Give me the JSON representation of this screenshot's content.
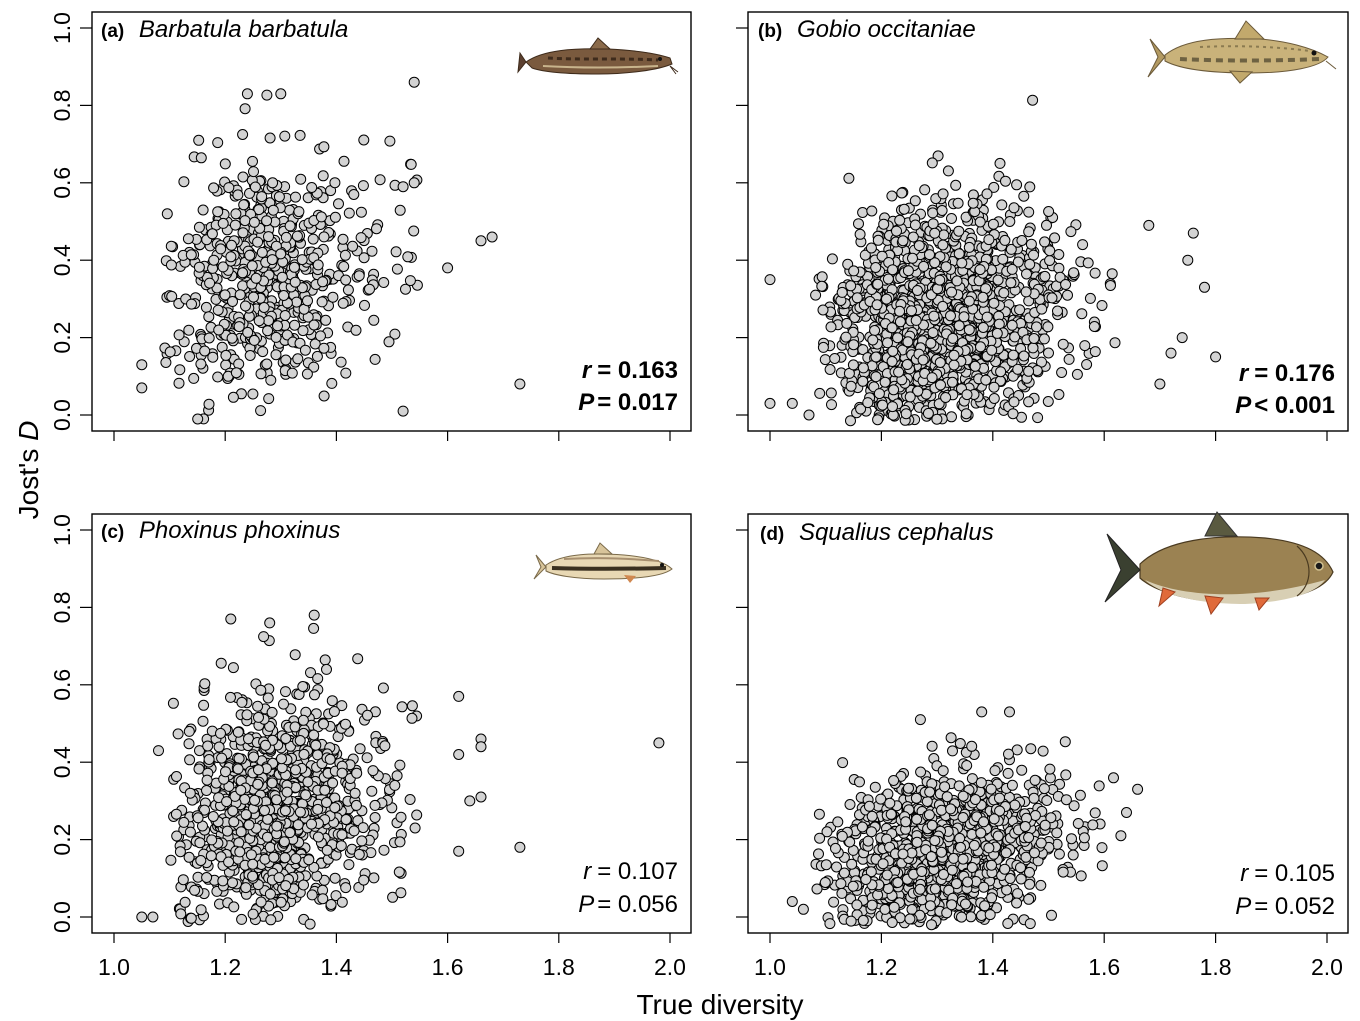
{
  "figure": {
    "xlabel": "True diversity",
    "ylabel": "Jost's D",
    "ylabel_plain": "Jost's ",
    "ylabel_italic": "D",
    "x_ticks": [
      "1.0",
      "1.2",
      "1.4",
      "1.6",
      "1.8",
      "2.0"
    ],
    "y_ticks": [
      "0.0",
      "0.2",
      "0.4",
      "0.6",
      "0.8",
      "1.0"
    ]
  },
  "colors": {
    "point_fill": "#d3d3d3",
    "point_stroke": "#000000",
    "frame": "#000000"
  },
  "chart_data": [
    {
      "type": "scatter",
      "panel_letter": "(a)",
      "species": "Barbatula barbatula",
      "fish_icon": "stone-loach-fish-illustration",
      "r_label": "r",
      "r_value": "= 0.163",
      "p_label": "P",
      "p_value": "= 0.017",
      "stats_bold": true,
      "xlim": [
        1.0,
        2.0
      ],
      "ylim": [
        0.0,
        1.0
      ],
      "n_points": 620,
      "cloud": {
        "x_mean": 1.27,
        "x_sd": 0.085,
        "y_mean": 0.35,
        "y_sd": 0.15,
        "x_min": 1.09,
        "x_max": 1.55
      },
      "extra_points": [
        {
          "x": 1.05,
          "y": 0.13
        },
        {
          "x": 1.05,
          "y": 0.07
        },
        {
          "x": 1.54,
          "y": 0.86
        },
        {
          "x": 1.66,
          "y": 0.45
        },
        {
          "x": 1.68,
          "y": 0.46
        },
        {
          "x": 1.6,
          "y": 0.38
        },
        {
          "x": 1.73,
          "y": 0.08
        },
        {
          "x": 1.52,
          "y": 0.01
        },
        {
          "x": 1.54,
          "y": 0.6
        },
        {
          "x": 1.52,
          "y": 0.59
        },
        {
          "x": 1.24,
          "y": 0.83
        },
        {
          "x": 1.3,
          "y": 0.83
        }
      ]
    },
    {
      "type": "scatter",
      "panel_letter": "(b)",
      "species": "Gobio occitaniae",
      "fish_icon": "gudgeon-fish-illustration",
      "r_label": "r",
      "r_value": "= 0.176",
      "p_label": "P",
      "p_value": "< 0.001",
      "stats_bold": true,
      "xlim": [
        1.0,
        2.0
      ],
      "ylim": [
        0.0,
        1.0
      ],
      "n_points": 1500,
      "cloud": {
        "x_mean": 1.3,
        "x_sd": 0.095,
        "y_mean": 0.24,
        "y_sd": 0.14,
        "x_min": 1.08,
        "x_max": 1.62
      },
      "extra_points": [
        {
          "x": 1.0,
          "y": 0.35
        },
        {
          "x": 1.0,
          "y": 0.03
        },
        {
          "x": 1.04,
          "y": 0.03
        },
        {
          "x": 1.07,
          "y": 0.0
        },
        {
          "x": 1.8,
          "y": 0.15
        },
        {
          "x": 1.76,
          "y": 0.47
        },
        {
          "x": 1.78,
          "y": 0.33
        },
        {
          "x": 1.75,
          "y": 0.4
        },
        {
          "x": 1.7,
          "y": 0.08
        },
        {
          "x": 1.68,
          "y": 0.49
        },
        {
          "x": 1.72,
          "y": 0.16
        },
        {
          "x": 1.74,
          "y": 0.2
        }
      ]
    },
    {
      "type": "scatter",
      "panel_letter": "(c)",
      "species": "Phoxinus phoxinus",
      "fish_icon": "minnow-fish-illustration",
      "r_label": "r",
      "r_value": "= 0.107",
      "p_label": "P",
      "p_value": "= 0.056",
      "stats_bold": false,
      "xlim": [
        1.0,
        2.0
      ],
      "ylim": [
        0.0,
        1.0
      ],
      "n_points": 1050,
      "cloud": {
        "x_mean": 1.28,
        "x_sd": 0.085,
        "y_mean": 0.27,
        "y_sd": 0.14,
        "x_min": 1.1,
        "x_max": 1.55
      },
      "extra_points": [
        {
          "x": 1.05,
          "y": 0.0
        },
        {
          "x": 1.07,
          "y": 0.0
        },
        {
          "x": 1.08,
          "y": 0.43
        },
        {
          "x": 1.98,
          "y": 0.45
        },
        {
          "x": 1.73,
          "y": 0.18
        },
        {
          "x": 1.62,
          "y": 0.57
        },
        {
          "x": 1.62,
          "y": 0.42
        },
        {
          "x": 1.66,
          "y": 0.46
        },
        {
          "x": 1.66,
          "y": 0.44
        },
        {
          "x": 1.66,
          "y": 0.31
        },
        {
          "x": 1.64,
          "y": 0.3
        },
        {
          "x": 1.62,
          "y": 0.17
        },
        {
          "x": 1.21,
          "y": 0.77
        },
        {
          "x": 1.36,
          "y": 0.78
        },
        {
          "x": 1.28,
          "y": 0.76
        }
      ]
    },
    {
      "type": "scatter",
      "panel_letter": "(d)",
      "species": "Squalius cephalus",
      "fish_icon": "chub-fish-illustration",
      "r_label": "r",
      "r_value": "= 0.105",
      "p_label": "P",
      "p_value": "= 0.052",
      "stats_bold": false,
      "xlim": [
        1.0,
        2.0
      ],
      "ylim": [
        0.0,
        1.0
      ],
      "n_points": 1150,
      "cloud": {
        "x_mean": 1.3,
        "x_sd": 0.1,
        "y_mean": 0.16,
        "y_sd": 0.1,
        "x_min": 1.08,
        "x_max": 1.62
      },
      "extra_points": [
        {
          "x": 1.04,
          "y": 0.04
        },
        {
          "x": 1.06,
          "y": 0.02
        },
        {
          "x": 1.66,
          "y": 0.33
        },
        {
          "x": 1.64,
          "y": 0.27
        },
        {
          "x": 1.63,
          "y": 0.21
        },
        {
          "x": 1.38,
          "y": 0.53
        },
        {
          "x": 1.43,
          "y": 0.53
        },
        {
          "x": 1.27,
          "y": 0.51
        },
        {
          "x": 1.29,
          "y": -0.02
        }
      ]
    }
  ]
}
